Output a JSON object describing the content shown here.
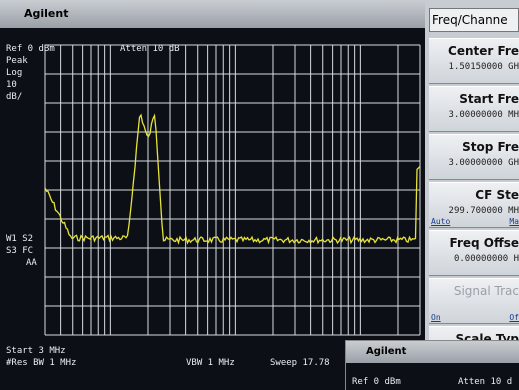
{
  "window_title": "Agilent",
  "screen": {
    "ref": "Ref 0 dBm",
    "atten": "Atten 10 dB",
    "left_labels": [
      "Peak",
      "Log",
      "10",
      "dB/"
    ],
    "mode_labels": [
      "W1 S2",
      "S3 FC",
      "AA"
    ],
    "start": "Start 3 MHz",
    "res_bw": "#Res BW 1 MHz",
    "vbw": "VBW 1 MHz",
    "sweep": "Sweep 17.78"
  },
  "menu": {
    "title": "Freq/Channe",
    "keys": [
      {
        "label": "Center Fre",
        "value": "1.50150000 GH"
      },
      {
        "label": "Start Fre",
        "value": "3.00000000 MH"
      },
      {
        "label": "Stop Fre",
        "value": "3.00000000 GH"
      },
      {
        "label": "CF Ste",
        "value": "299.700000 MH",
        "left": "Auto",
        "right": "Ma"
      },
      {
        "label": "Freq Offse",
        "value": "0.00000000 H"
      },
      {
        "label": "Signal Trac",
        "left": "On",
        "right": "Of"
      },
      {
        "label": "Scale Typ"
      }
    ]
  },
  "overlay": {
    "title": "Agilent",
    "ref": "Ref 0 dBm",
    "atten": "Atten 10 d"
  }
}
